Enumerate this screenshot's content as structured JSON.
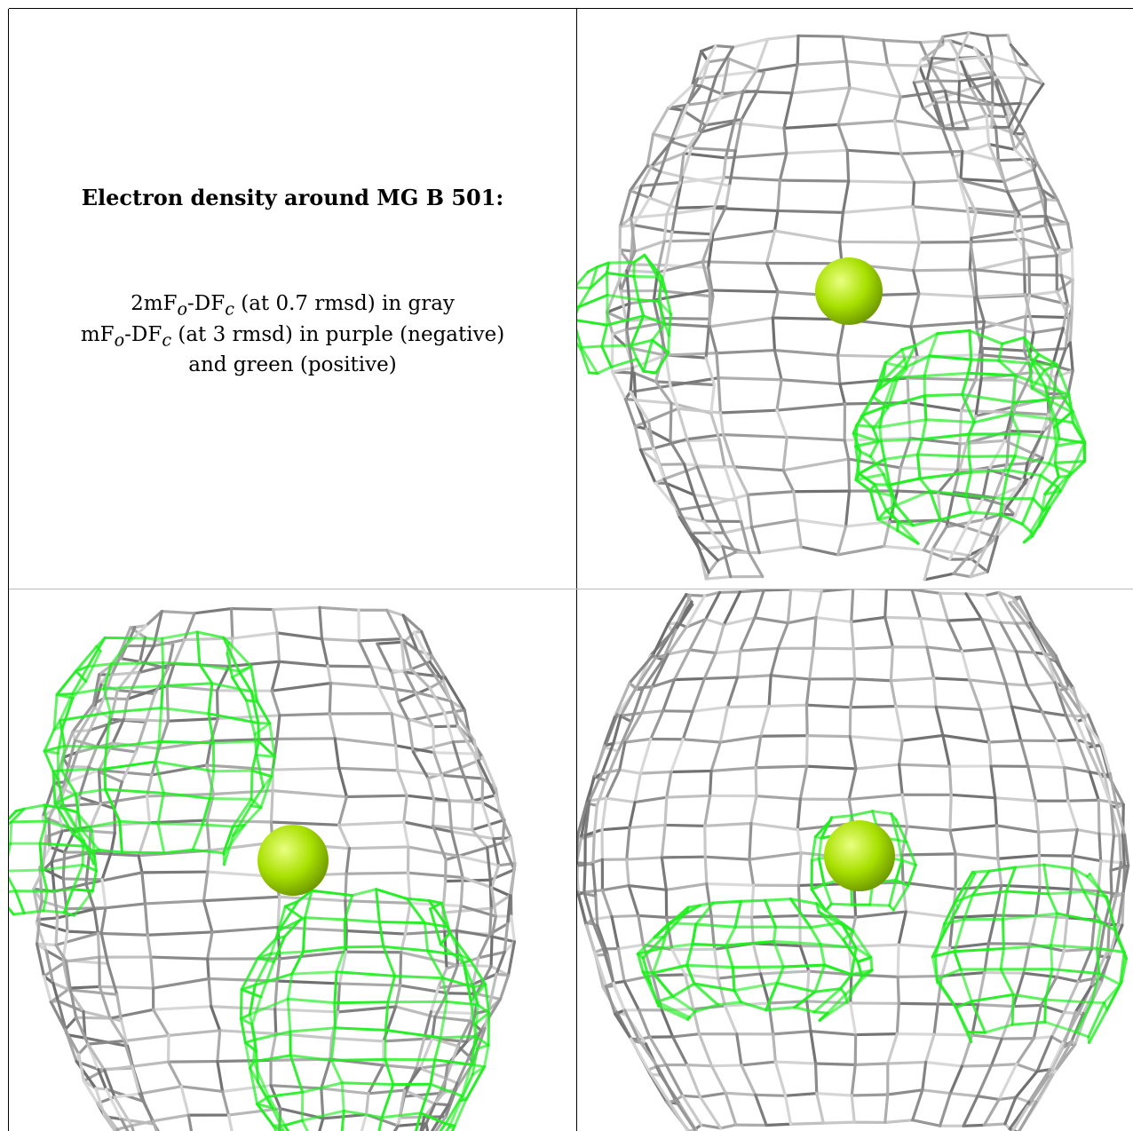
{
  "heading": "Electron density around MG B 501:",
  "legend": [
    {
      "prefix": "2mF",
      "sub1": "o",
      "mid": "-DF",
      "sub2": "c",
      "rest": " (at 0.7 rmsd) in gray"
    },
    {
      "prefix": "mF",
      "sub1": "o",
      "mid": "-DF",
      "sub2": "c",
      "rest": " (at 3 rmsd) in purple (negative)"
    }
  ],
  "legend_line3": "and green (positive)",
  "colors": {
    "gray_mesh": "#a9a9a9",
    "green_mesh": "#22ee22",
    "mg_sphere": "#a8e000"
  },
  "panels": [
    {
      "view": "view-1"
    },
    {
      "view": "view-2"
    },
    {
      "view": "view-3"
    }
  ]
}
